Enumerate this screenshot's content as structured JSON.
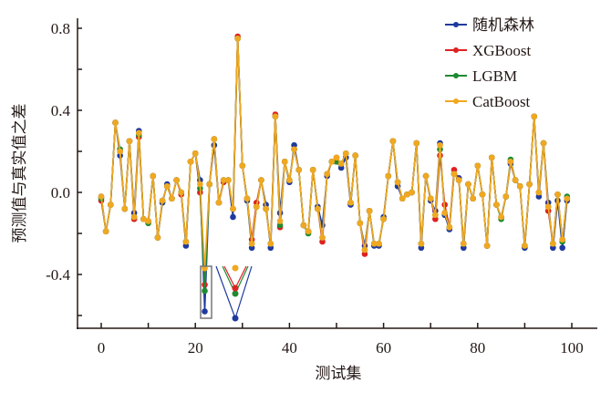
{
  "chart_data": {
    "type": "line",
    "title": "",
    "xlabel": "测试集",
    "ylabel": "预测值与真实值之差",
    "xlim": [
      -5,
      105
    ],
    "ylim": [
      -0.66,
      0.8
    ],
    "xticks": [
      0,
      10,
      20,
      30,
      40,
      50,
      60,
      70,
      80,
      90,
      100
    ],
    "xtick_labels": [
      "0",
      "20",
      "40",
      "60",
      "80",
      "100"
    ],
    "xtick_label_values": [
      0,
      20,
      40,
      60,
      80,
      100
    ],
    "yticks": [
      -0.6,
      -0.4,
      -0.2,
      0.0,
      0.2,
      0.4,
      0.6,
      0.8
    ],
    "ytick_labels": [
      "0.8",
      "0.4",
      "0.0",
      "-0.4"
    ],
    "ytick_label_values": [
      0.8,
      0.4,
      0.0,
      -0.4
    ],
    "grid": false,
    "legend_position": "top-right",
    "series": [
      {
        "name": "随机森林",
        "color": "#1f3a9e",
        "values": [
          -0.02,
          -0.19,
          -0.06,
          0.34,
          0.18,
          -0.08,
          0.25,
          -0.1,
          0.3,
          -0.13,
          -0.14,
          0.08,
          -0.22,
          -0.05,
          0.04,
          -0.03,
          0.06,
          0.0,
          -0.26,
          0.15,
          0.19,
          0.06,
          -0.58,
          0.04,
          0.23,
          -0.05,
          0.06,
          0.06,
          -0.12,
          0.75,
          0.13,
          -0.04,
          -0.27,
          -0.07,
          0.06,
          -0.06,
          -0.27,
          0.37,
          -0.1,
          0.15,
          0.05,
          0.23,
          0.11,
          -0.16,
          -0.19,
          0.11,
          -0.07,
          -0.16,
          0.08,
          0.15,
          0.15,
          0.12,
          0.17,
          -0.06,
          0.18,
          -0.15,
          -0.26,
          -0.09,
          -0.26,
          -0.26,
          -0.12,
          0.08,
          0.25,
          0.03,
          -0.03,
          -0.01,
          0.0,
          0.24,
          -0.27,
          0.08,
          -0.04,
          -0.09,
          0.24,
          -0.11,
          -0.18,
          0.09,
          0.07,
          -0.27,
          0.04,
          -0.03,
          0.13,
          -0.01,
          -0.26,
          0.17,
          -0.06,
          -0.12,
          -0.02,
          0.14,
          0.06,
          0.03,
          -0.27,
          0.04,
          0.37,
          -0.02,
          0.24,
          -0.05,
          -0.27,
          -0.04,
          -0.27,
          -0.04
        ]
      },
      {
        "name": "XGBoost",
        "color": "#e02020",
        "values": [
          -0.04,
          -0.19,
          -0.06,
          0.34,
          0.2,
          -0.08,
          0.25,
          -0.13,
          0.27,
          -0.13,
          -0.14,
          0.08,
          -0.22,
          -0.04,
          0.03,
          -0.03,
          0.06,
          -0.01,
          -0.24,
          0.15,
          0.19,
          0.0,
          -0.45,
          0.04,
          0.26,
          -0.05,
          0.05,
          0.06,
          -0.08,
          0.76,
          0.13,
          -0.03,
          -0.23,
          -0.05,
          0.06,
          -0.08,
          -0.25,
          0.38,
          -0.17,
          0.15,
          0.06,
          0.21,
          0.11,
          -0.16,
          -0.19,
          0.11,
          -0.08,
          -0.24,
          0.09,
          0.15,
          0.17,
          0.14,
          0.19,
          -0.05,
          0.18,
          -0.15,
          -0.3,
          -0.09,
          -0.25,
          -0.25,
          -0.13,
          0.08,
          0.25,
          0.05,
          -0.03,
          -0.01,
          0.0,
          0.24,
          -0.25,
          0.08,
          -0.03,
          -0.13,
          0.18,
          -0.06,
          -0.17,
          0.11,
          0.06,
          -0.25,
          0.04,
          -0.03,
          0.13,
          -0.01,
          -0.26,
          0.17,
          -0.06,
          -0.12,
          -0.02,
          0.15,
          0.06,
          0.03,
          -0.26,
          0.04,
          0.37,
          -0.0,
          0.24,
          -0.09,
          -0.25,
          -0.01,
          -0.23,
          -0.03
        ]
      },
      {
        "name": "LGBM",
        "color": "#1e8a32",
        "values": [
          -0.03,
          -0.19,
          -0.06,
          0.34,
          0.21,
          -0.08,
          0.25,
          -0.12,
          0.28,
          -0.13,
          -0.15,
          0.08,
          -0.22,
          -0.04,
          0.03,
          -0.03,
          0.06,
          0.0,
          -0.24,
          0.15,
          0.19,
          0.02,
          -0.48,
          0.04,
          0.26,
          -0.05,
          0.06,
          0.06,
          -0.08,
          0.75,
          0.13,
          -0.03,
          -0.25,
          -0.07,
          0.06,
          -0.08,
          -0.25,
          0.37,
          -0.16,
          0.15,
          0.06,
          0.21,
          0.11,
          -0.16,
          -0.2,
          0.11,
          -0.08,
          -0.22,
          0.09,
          0.15,
          0.15,
          0.14,
          0.19,
          -0.05,
          0.18,
          -0.15,
          -0.28,
          -0.09,
          -0.25,
          -0.25,
          -0.13,
          0.08,
          0.25,
          0.05,
          -0.03,
          -0.01,
          0.0,
          0.24,
          -0.25,
          0.08,
          -0.03,
          -0.11,
          0.21,
          -0.1,
          -0.17,
          0.09,
          0.06,
          -0.25,
          0.04,
          -0.03,
          0.13,
          -0.01,
          -0.26,
          0.17,
          -0.06,
          -0.13,
          -0.02,
          0.16,
          0.06,
          0.03,
          -0.26,
          0.04,
          0.37,
          -0.0,
          0.24,
          -0.07,
          -0.25,
          -0.01,
          -0.24,
          -0.02
        ]
      },
      {
        "name": "CatBoost",
        "color": "#f0a820",
        "values": [
          -0.02,
          -0.19,
          -0.06,
          0.34,
          0.2,
          -0.08,
          0.25,
          -0.12,
          0.29,
          -0.13,
          -0.14,
          0.08,
          -0.22,
          -0.04,
          0.03,
          -0.03,
          0.06,
          0.0,
          -0.24,
          0.15,
          0.19,
          0.04,
          -0.37,
          0.04,
          0.26,
          -0.05,
          0.06,
          0.06,
          -0.08,
          0.75,
          0.13,
          -0.03,
          -0.25,
          -0.07,
          0.06,
          -0.08,
          -0.25,
          0.37,
          -0.14,
          0.15,
          0.06,
          0.21,
          0.11,
          -0.16,
          -0.19,
          0.11,
          -0.08,
          -0.22,
          0.09,
          0.15,
          0.17,
          0.14,
          0.19,
          -0.05,
          0.18,
          -0.15,
          -0.28,
          -0.09,
          -0.25,
          -0.25,
          -0.13,
          0.08,
          0.25,
          0.05,
          -0.03,
          -0.01,
          0.0,
          0.24,
          -0.25,
          0.08,
          -0.03,
          -0.11,
          0.23,
          -0.1,
          -0.17,
          0.09,
          0.06,
          -0.25,
          0.04,
          -0.03,
          0.13,
          -0.01,
          -0.26,
          0.17,
          -0.06,
          -0.12,
          -0.02,
          0.15,
          0.06,
          0.03,
          -0.26,
          0.04,
          0.37,
          -0.0,
          0.24,
          -0.07,
          -0.25,
          -0.01,
          -0.23,
          -0.03
        ]
      }
    ],
    "x": "index 0..99",
    "annotation": "inset highlighting spread of predictions at test sample 22"
  }
}
